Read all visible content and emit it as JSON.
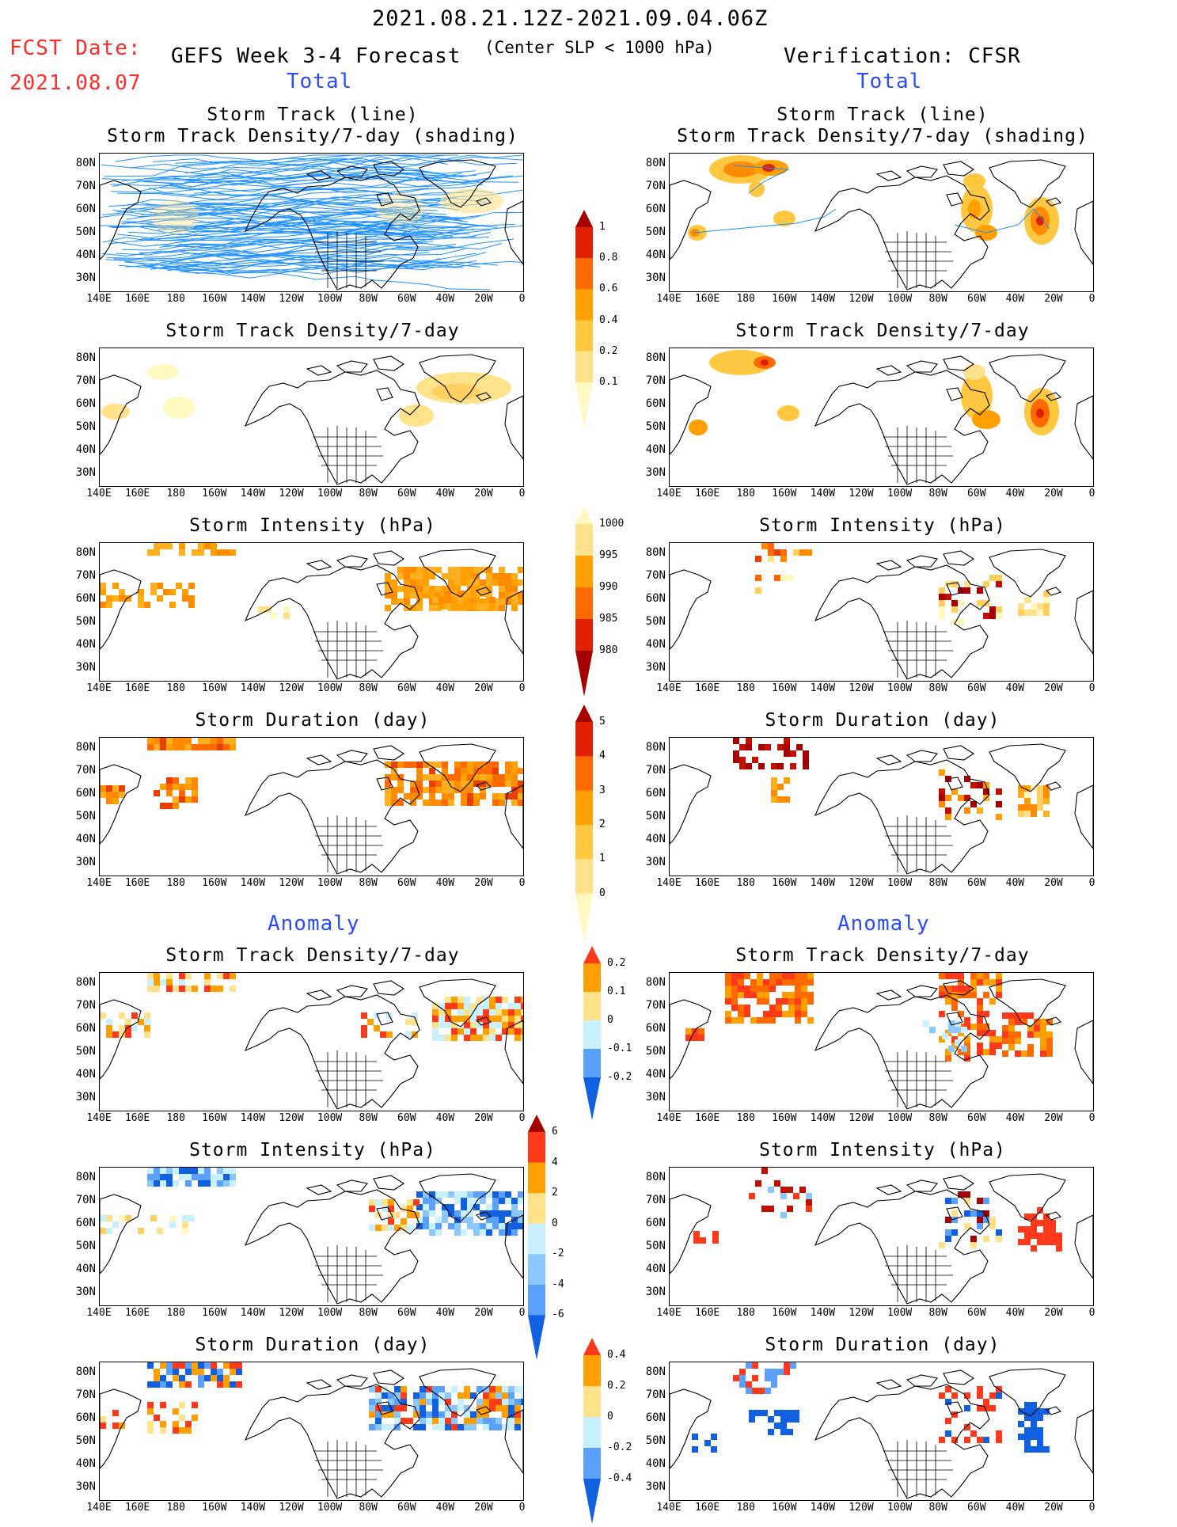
{
  "header": {
    "date_range": "2021.08.21.12Z-2021.09.04.06Z",
    "fcst_label": "FCST Date:",
    "fcst_date": "2021.08.07",
    "forecast_title": "GEFS Week 3-4 Forecast",
    "criterion": "(Center SLP < 1000 hPa)",
    "verification": "Verification: CFSR",
    "total_left": "Total",
    "total_right": "Total",
    "anomaly_left": "Anomaly",
    "anomaly_right": "Anomaly"
  },
  "panel_titles": {
    "track_line": "Storm Track (line)",
    "track_shading": "Storm Track Density/7-day (shading)",
    "density": "Storm Track Density/7-day",
    "intensity": "Storm Intensity (hPa)",
    "duration": "Storm Duration (day)"
  },
  "axes": {
    "y_ticks": [
      "80N",
      "70N",
      "60N",
      "50N",
      "40N",
      "30N"
    ],
    "x_ticks": [
      "140E",
      "160E",
      "180",
      "160W",
      "140W",
      "120W",
      "100W",
      "80W",
      "60W",
      "40W",
      "20W",
      "0"
    ]
  },
  "colorbars": {
    "density_total": {
      "labels": [
        "1",
        "0.8",
        "0.6",
        "0.4",
        "0.2",
        "0.1"
      ],
      "colors": [
        "#a50000",
        "#e02000",
        "#ff6a00",
        "#ffa000",
        "#ffc840",
        "#ffe28a",
        "#fff8c0"
      ]
    },
    "intensity_total": {
      "labels": [
        "1000",
        "995",
        "990",
        "985",
        "980"
      ],
      "colors": [
        "#fff8c0",
        "#ffe28a",
        "#ffa000",
        "#ff6a00",
        "#e02000",
        "#a50000"
      ]
    },
    "duration_total": {
      "labels": [
        "5",
        "4",
        "3",
        "2",
        "1",
        "0"
      ],
      "colors": [
        "#a50000",
        "#e02000",
        "#ff6a00",
        "#ffa000",
        "#ffc840",
        "#ffe28a",
        "#fff8c0"
      ]
    },
    "density_anom": {
      "labels": [
        "0.2",
        "0.1",
        "0",
        "-0.1",
        "-0.2"
      ],
      "colors": [
        "#ff3a1a",
        "#ffa000",
        "#ffe28a",
        "#c8f0ff",
        "#5aa0ff",
        "#1060e0"
      ]
    },
    "intensity_anom": {
      "labels": [
        "6",
        "4",
        "2",
        "0",
        "-2",
        "-4",
        "-6"
      ],
      "colors": [
        "#a50000",
        "#ff3a1a",
        "#ffa000",
        "#ffe28a",
        "#c8f0ff",
        "#8cc8ff",
        "#5aa0ff",
        "#1060e0"
      ]
    },
    "duration_anom": {
      "labels": [
        "0.4",
        "0.2",
        "0",
        "-0.2",
        "-0.4"
      ],
      "colors": [
        "#ff3a1a",
        "#ffa000",
        "#ffe28a",
        "#c8f0ff",
        "#5aa0ff",
        "#1060e0"
      ]
    }
  },
  "colors": {
    "text_red": "#ff2a2a",
    "text_blue": "#2a4bff",
    "track_line": "#1e90ff"
  }
}
